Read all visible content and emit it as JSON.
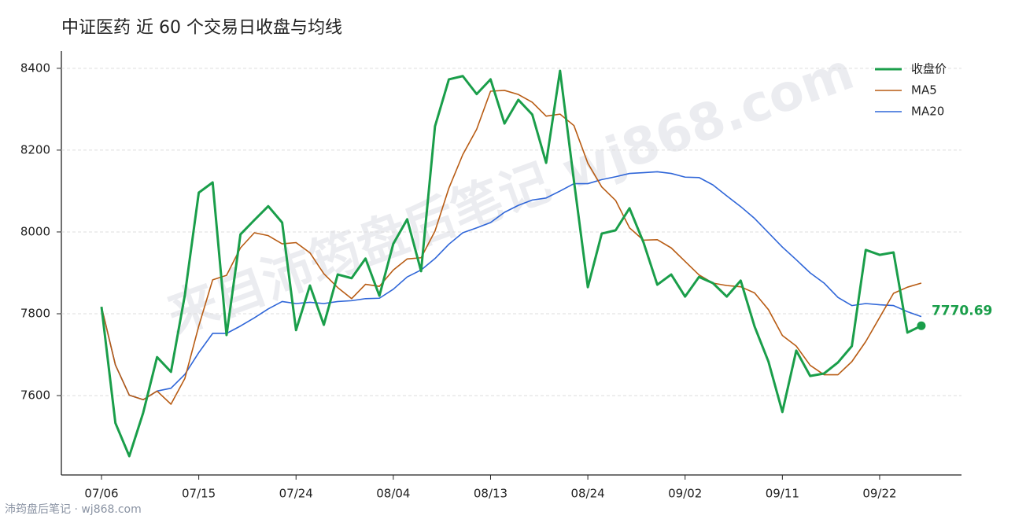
{
  "chart_data": {
    "type": "line",
    "title": "中证医药 近 60 个交易日收盘与均线",
    "watermark": "来自沛筠盘后笔记 wj868.com",
    "footer": "沛筠盘后笔记 · wj868.com",
    "categories": [
      "07/06",
      null,
      null,
      null,
      null,
      null,
      null,
      "07/15",
      null,
      null,
      null,
      null,
      null,
      null,
      "07/24",
      null,
      null,
      null,
      null,
      null,
      null,
      "08/04",
      null,
      null,
      null,
      null,
      null,
      null,
      "08/13",
      null,
      null,
      null,
      null,
      null,
      null,
      "08/24",
      null,
      null,
      null,
      null,
      null,
      null,
      "09/02",
      null,
      null,
      null,
      null,
      null,
      null,
      "09/11",
      null,
      null,
      null,
      null,
      null,
      null,
      "09/22",
      null,
      null,
      null
    ],
    "series": [
      {
        "name": "收盘价",
        "color": "#1a9e4a",
        "width": 3,
        "values": [
          7817,
          7533,
          7452,
          7558,
          7694,
          7658,
          7846,
          8096,
          8121,
          7748,
          7994,
          8029,
          8063,
          8023,
          7760,
          7869,
          7773,
          7896,
          7887,
          7935,
          7844,
          7971,
          8031,
          7904,
          8258,
          8373,
          8381,
          8337,
          8373,
          8265,
          8323,
          8287,
          8169,
          8394,
          8125,
          7865,
          7996,
          8004,
          8058,
          7975,
          7871,
          7896,
          7842,
          7890,
          7875,
          7842,
          7881,
          7769,
          7683,
          7560,
          7710,
          7648,
          7654,
          7681,
          7721,
          7956,
          7944,
          7950,
          7754,
          7770.69
        ]
      },
      {
        "name": "MA5",
        "color": "#b85c14",
        "width": 1.6,
        "values": [
          7817,
          7675,
          7601,
          7590,
          7611,
          7579,
          7642,
          7770,
          7883,
          7894,
          7961,
          7998,
          7991,
          7971,
          7974,
          7949,
          7898,
          7864,
          7837,
          7872,
          7867,
          7907,
          7934,
          7937,
          8002,
          8107,
          8189,
          8251,
          8344,
          8346,
          8336,
          8317,
          8283,
          8288,
          8260,
          8168,
          8110,
          8077,
          8010,
          7980,
          7981,
          7961,
          7928,
          7895,
          7875,
          7869,
          7866,
          7851,
          7810,
          7747,
          7721,
          7674,
          7651,
          7651,
          7683,
          7732,
          7791,
          7850,
          7865,
          7875
        ]
      },
      {
        "name": "MA20",
        "color": "#2f66d8",
        "width": 1.6,
        "values": [
          7817,
          7675,
          7601,
          7590,
          7611,
          7618,
          7652,
          7705,
          7752,
          7752,
          7770,
          7790,
          7812,
          7830,
          7825,
          7828,
          7825,
          7830,
          7832,
          7837,
          7838,
          7860,
          7890,
          7907,
          7935,
          7970,
          7998,
          8010,
          8023,
          8048,
          8065,
          8078,
          8083,
          8100,
          8118,
          8118,
          8128,
          8135,
          8143,
          8145,
          8147,
          8143,
          8134,
          8133,
          8115,
          8088,
          8062,
          8033,
          7998,
          7963,
          7932,
          7900,
          7875,
          7840,
          7820,
          7825,
          7822,
          7820,
          7805,
          7793
        ]
      }
    ],
    "ylim": [
      7406,
      8442
    ],
    "yticks": [
      7600,
      7800,
      8000,
      8200,
      8400
    ],
    "grid": true,
    "legend": "upper right"
  }
}
